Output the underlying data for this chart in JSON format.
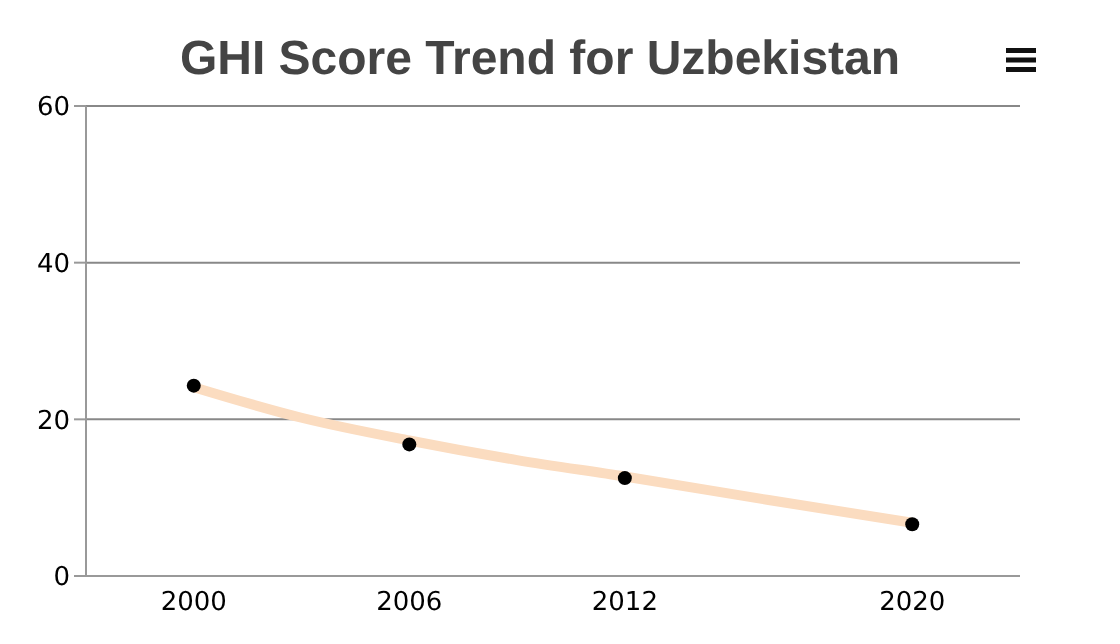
{
  "chart_data": {
    "type": "scatter",
    "title": "GHI Score Trend for Uzbekistan",
    "x": [
      2000,
      2006,
      2012,
      2020
    ],
    "series": [
      {
        "color": "#000000",
        "values": [
          24.3,
          16.8,
          12.5,
          6.6
        ],
        "marker": "circle"
      },
      {
        "type": "line",
        "color": "#fbdcc0",
        "x": [
          2000,
          2003,
          2006,
          2009,
          2012,
          2016,
          2020
        ],
        "values": [
          24.1,
          20.2,
          17.3,
          14.8,
          12.7,
          9.7,
          6.8
        ],
        "marker": "none"
      }
    ],
    "xlim": [
      1997,
      2023
    ],
    "xticks": [
      2000,
      2006,
      2012,
      2020
    ],
    "ylim": [
      0,
      60
    ],
    "yticks": [
      0,
      20,
      40,
      60
    ],
    "grid": "y",
    "legend": false
  }
}
